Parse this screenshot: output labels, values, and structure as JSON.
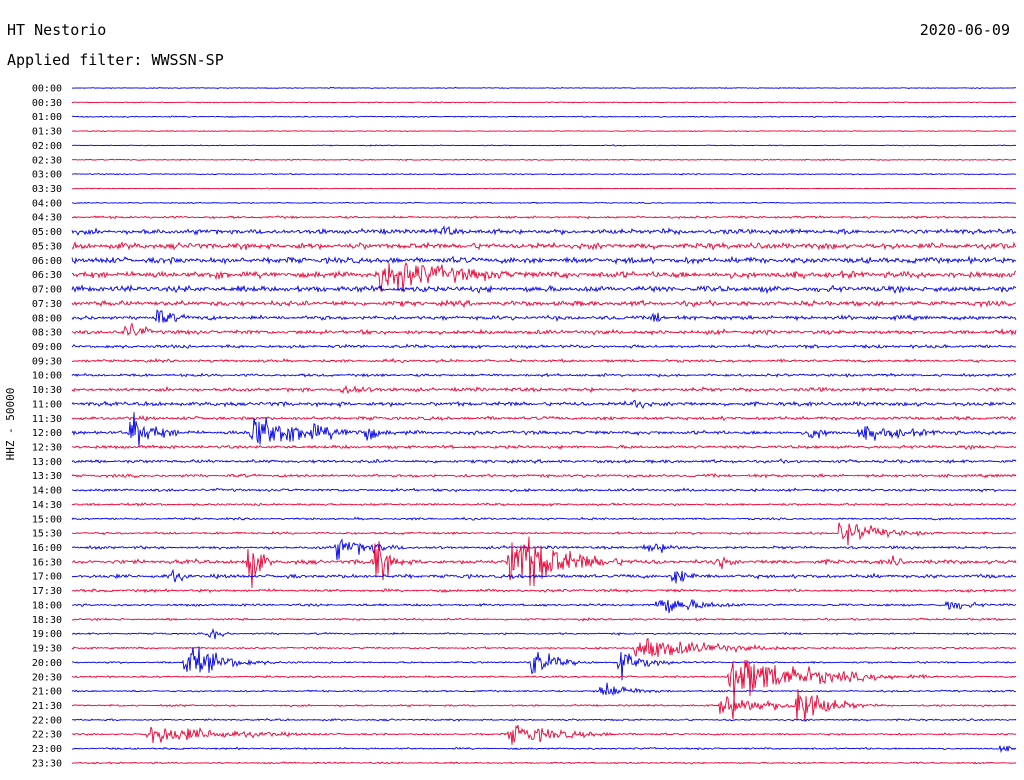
{
  "header": {
    "station": "HT Nestorio",
    "date": "2020-06-09",
    "filter": "Applied filter: WWSSN-SP"
  },
  "chart_data": {
    "type": "line",
    "subtype": "helicorder",
    "ylabel": "HHZ - 50000",
    "trace_colors": [
      "#0000ee",
      "#ee0033"
    ],
    "row_labels": [
      "00:00",
      "00:30",
      "01:00",
      "01:30",
      "02:00",
      "02:30",
      "03:00",
      "03:30",
      "04:00",
      "04:30",
      "05:00",
      "05:30",
      "06:00",
      "06:30",
      "07:00",
      "07:30",
      "08:00",
      "08:30",
      "09:00",
      "09:30",
      "10:00",
      "10:30",
      "11:00",
      "11:30",
      "12:00",
      "12:30",
      "13:00",
      "13:30",
      "14:00",
      "14:30",
      "15:00",
      "15:30",
      "16:00",
      "16:30",
      "17:00",
      "17:30",
      "18:00",
      "18:30",
      "19:00",
      "19:30",
      "20:00",
      "20:30",
      "21:00",
      "21:30",
      "22:00",
      "22:30",
      "23:00",
      "23:30"
    ],
    "noise_level": [
      0.4,
      0.4,
      0.5,
      0.4,
      0.4,
      0.5,
      0.5,
      0.4,
      0.5,
      1.0,
      2.2,
      2.6,
      2.6,
      2.8,
      2.6,
      2.2,
      1.8,
      1.8,
      1.4,
      1.2,
      1.2,
      1.6,
      1.8,
      1.5,
      1.6,
      1.4,
      1.4,
      1.3,
      1.2,
      1.0,
      0.9,
      1.0,
      1.2,
      1.8,
      1.6,
      1.2,
      1.0,
      0.9,
      0.8,
      0.8,
      0.8,
      0.8,
      0.8,
      0.8,
      0.8,
      0.8,
      0.8,
      0.7
    ],
    "events": [
      {
        "row": 13,
        "minute": 9.8,
        "amplitude": 16,
        "duration": 2.5
      },
      {
        "row": 13,
        "minute": 4.5,
        "amplitude": 6,
        "duration": 0.6
      },
      {
        "row": 10,
        "minute": 11.8,
        "amplitude": 6,
        "duration": 0.5
      },
      {
        "row": 16,
        "minute": 2.7,
        "amplitude": 9,
        "duration": 0.6
      },
      {
        "row": 16,
        "minute": 18.4,
        "amplitude": 6,
        "duration": 0.5
      },
      {
        "row": 17,
        "minute": 1.7,
        "amplitude": 10,
        "duration": 0.6
      },
      {
        "row": 21,
        "minute": 8.5,
        "amplitude": 6,
        "duration": 1.0
      },
      {
        "row": 22,
        "minute": 17.8,
        "amplitude": 6,
        "duration": 0.5
      },
      {
        "row": 24,
        "minute": 2.3,
        "amplitude": 10,
        "duration": 0.8
      },
      {
        "row": 24,
        "minute": 5.7,
        "amplitude": 18,
        "duration": 2.0
      },
      {
        "row": 24,
        "minute": 9.3,
        "amplitude": 8,
        "duration": 0.5
      },
      {
        "row": 24,
        "minute": 25.0,
        "amplitude": 7,
        "duration": 2.0
      },
      {
        "row": 24,
        "minute": 23.4,
        "amplitude": 8,
        "duration": 0.5
      },
      {
        "row": 24,
        "minute": 1.9,
        "amplitude": 34,
        "duration": 0.2
      },
      {
        "row": 31,
        "minute": 24.4,
        "amplitude": 12,
        "duration": 1.2
      },
      {
        "row": 32,
        "minute": 8.4,
        "amplitude": 10,
        "duration": 1.2
      },
      {
        "row": 32,
        "minute": 18.2,
        "amplitude": 6,
        "duration": 1.0
      },
      {
        "row": 33,
        "minute": 5.6,
        "amplitude": 30,
        "duration": 0.3
      },
      {
        "row": 33,
        "minute": 9.6,
        "amplitude": 30,
        "duration": 0.4
      },
      {
        "row": 33,
        "minute": 13.9,
        "amplitude": 36,
        "duration": 1.4
      },
      {
        "row": 33,
        "minute": 20.5,
        "amplitude": 8,
        "duration": 0.4
      },
      {
        "row": 33,
        "minute": 26.0,
        "amplitude": 6,
        "duration": 0.4
      },
      {
        "row": 34,
        "minute": 3.1,
        "amplitude": 8,
        "duration": 0.4
      },
      {
        "row": 34,
        "minute": 19.1,
        "amplitude": 8,
        "duration": 0.7
      },
      {
        "row": 36,
        "minute": 18.6,
        "amplitude": 10,
        "duration": 1.3
      },
      {
        "row": 36,
        "minute": 27.8,
        "amplitude": 6,
        "duration": 0.8
      },
      {
        "row": 38,
        "minute": 4.4,
        "amplitude": 8,
        "duration": 0.3
      },
      {
        "row": 39,
        "minute": 17.9,
        "amplitude": 11,
        "duration": 2.2
      },
      {
        "row": 40,
        "minute": 3.6,
        "amplitude": 16,
        "duration": 1.1
      },
      {
        "row": 40,
        "minute": 14.6,
        "amplitude": 14,
        "duration": 0.7
      },
      {
        "row": 40,
        "minute": 17.4,
        "amplitude": 14,
        "duration": 0.7
      },
      {
        "row": 41,
        "minute": 20.9,
        "amplitude": 22,
        "duration": 2.2
      },
      {
        "row": 42,
        "minute": 16.8,
        "amplitude": 8,
        "duration": 1.0
      },
      {
        "row": 43,
        "minute": 20.6,
        "amplitude": 12,
        "duration": 1.4
      },
      {
        "row": 43,
        "minute": 23.0,
        "amplitude": 24,
        "duration": 0.8
      },
      {
        "row": 45,
        "minute": 2.4,
        "amplitude": 9,
        "duration": 2.4
      },
      {
        "row": 45,
        "minute": 13.9,
        "amplitude": 10,
        "duration": 1.6
      },
      {
        "row": 46,
        "minute": 29.5,
        "amplitude": 5,
        "duration": 0.3
      }
    ]
  }
}
